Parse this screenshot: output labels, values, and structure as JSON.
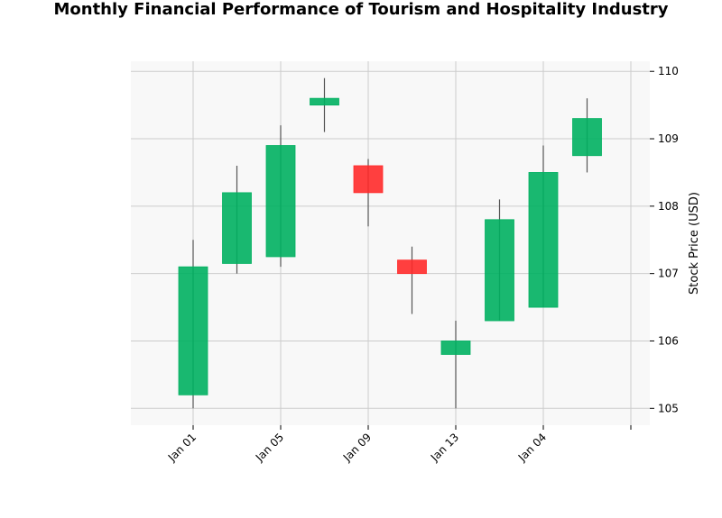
{
  "chart_data": {
    "type": "candlestick",
    "title": "Monthly Financial Performance of Tourism and Hospitality Industry",
    "xlabel": "",
    "ylabel": "Stock Price (USD)",
    "ylim": [
      104.75,
      110.15
    ],
    "yticks": [
      105,
      106,
      107,
      108,
      109,
      110
    ],
    "xtick_labels": [
      "Jan 01",
      "Jan 05",
      "Jan 09",
      "Jan 13",
      "Jan 04",
      ""
    ],
    "grid": true,
    "colors": {
      "up": "#00b060",
      "down": "#ff2a2a",
      "wick": "#555555",
      "plot_bg": "#f8f8f8",
      "grid": "#cccccc"
    },
    "candles": [
      {
        "open": 105.2,
        "high": 107.5,
        "low": 105.0,
        "close": 107.1
      },
      {
        "open": 107.15,
        "high": 108.6,
        "low": 107.0,
        "close": 108.2
      },
      {
        "open": 107.25,
        "high": 109.2,
        "low": 107.1,
        "close": 108.9
      },
      {
        "open": 109.5,
        "high": 109.9,
        "low": 109.1,
        "close": 109.6
      },
      {
        "open": 108.6,
        "high": 108.7,
        "low": 107.7,
        "close": 108.2
      },
      {
        "open": 107.2,
        "high": 107.4,
        "low": 106.4,
        "close": 107.0
      },
      {
        "open": 105.8,
        "high": 106.3,
        "low": 105.0,
        "close": 106.0
      },
      {
        "open": 106.3,
        "high": 108.1,
        "low": 106.3,
        "close": 107.8
      },
      {
        "open": 106.5,
        "high": 108.9,
        "low": 106.5,
        "close": 108.5
      },
      {
        "open": 108.75,
        "high": 109.6,
        "low": 108.5,
        "close": 109.3
      }
    ]
  }
}
